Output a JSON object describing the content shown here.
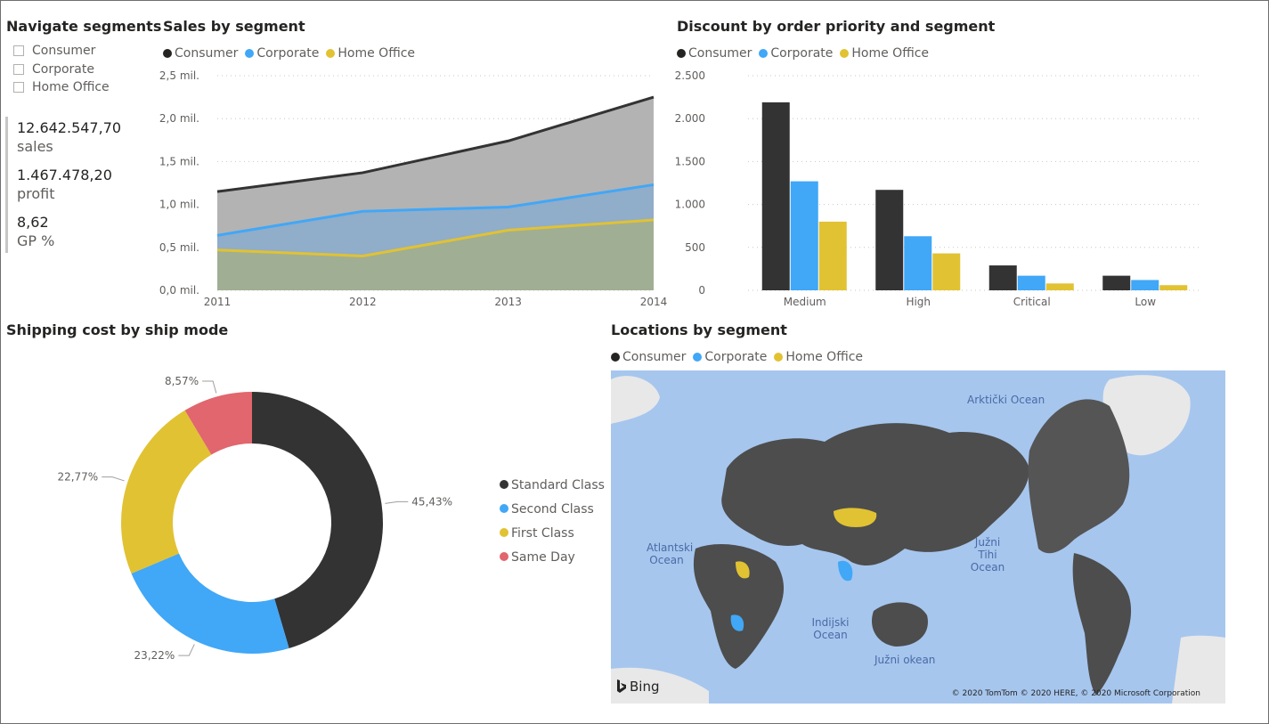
{
  "slicer": {
    "title": "Navigate segments",
    "items": [
      "Consumer",
      "Corporate",
      "Home Office"
    ]
  },
  "kpis": [
    {
      "value": "12.642.547,70",
      "label": "sales"
    },
    {
      "value": "1.467.478,20",
      "label": "profit"
    },
    {
      "value": "8,62",
      "label": "GP %"
    }
  ],
  "colors": {
    "consumer": "#333333",
    "corporate": "#41a7f7",
    "home_office": "#e1c233",
    "same_day": "#e1666e"
  },
  "sales_chart": {
    "title": "Sales by segment",
    "legend": [
      "Consumer",
      "Corporate",
      "Home Office"
    ]
  },
  "discount_chart": {
    "title": "Discount by order priority and segment",
    "legend": [
      "Consumer",
      "Corporate",
      "Home Office"
    ]
  },
  "shipping_chart": {
    "title": "Shipping cost by ship mode",
    "legend": [
      "Standard Class",
      "Second Class",
      "First Class",
      "Same Day"
    ]
  },
  "map": {
    "title": "Locations by segment",
    "legend": [
      "Consumer",
      "Corporate",
      "Home Office"
    ],
    "labels": {
      "arctic": "Arktički Ocean",
      "atlantic": "Atlantski Ocean",
      "pacific": "Južni Tihi Ocean",
      "indian": "Indijski Ocean",
      "southern": "Južni okean"
    },
    "bing": "Bing",
    "copyright": "© 2020 TomTom © 2020 HERE, © 2020 Microsoft Corporation"
  },
  "chart_data": [
    {
      "type": "area",
      "title": "Sales by segment",
      "x": [
        "2011",
        "2012",
        "2013",
        "2014"
      ],
      "ylim": [
        0,
        2500000
      ],
      "yticks": [
        0,
        500000,
        1000000,
        1500000,
        2000000,
        2500000
      ],
      "ytick_labels": [
        "0,0 mil.",
        "0,5 mil.",
        "1,0 mil.",
        "1,5 mil.",
        "2,0 mil.",
        "2,5 mil."
      ],
      "grid": true,
      "legend_position": "top-left",
      "series": [
        {
          "name": "Consumer",
          "values": [
            1150000,
            1370000,
            1740000,
            2250000
          ]
        },
        {
          "name": "Corporate",
          "values": [
            640000,
            920000,
            970000,
            1230000
          ]
        },
        {
          "name": "Home Office",
          "values": [
            470000,
            400000,
            700000,
            820000
          ]
        }
      ]
    },
    {
      "type": "bar",
      "title": "Discount by order priority and segment",
      "categories": [
        "Medium",
        "High",
        "Critical",
        "Low"
      ],
      "ylim": [
        0,
        2500
      ],
      "yticks": [
        0,
        500,
        1000,
        1500,
        2000,
        2500
      ],
      "ytick_labels": [
        "0",
        "500",
        "1.000",
        "1.500",
        "2.000",
        "2.500"
      ],
      "grid": true,
      "legend_position": "top-left",
      "series": [
        {
          "name": "Consumer",
          "values": [
            2190,
            1170,
            290,
            170
          ]
        },
        {
          "name": "Corporate",
          "values": [
            1270,
            630,
            170,
            120
          ]
        },
        {
          "name": "Home Office",
          "values": [
            800,
            430,
            80,
            60
          ]
        }
      ]
    },
    {
      "type": "pie",
      "title": "Shipping cost by ship mode",
      "legend_position": "right",
      "slices": [
        {
          "name": "Standard Class",
          "value": 45.43,
          "label": "45,43%"
        },
        {
          "name": "Second Class",
          "value": 23.22,
          "label": "23,22%"
        },
        {
          "name": "First Class",
          "value": 22.77,
          "label": "22,77%"
        },
        {
          "name": "Same Day",
          "value": 8.57,
          "label": "8,57%"
        }
      ]
    }
  ]
}
